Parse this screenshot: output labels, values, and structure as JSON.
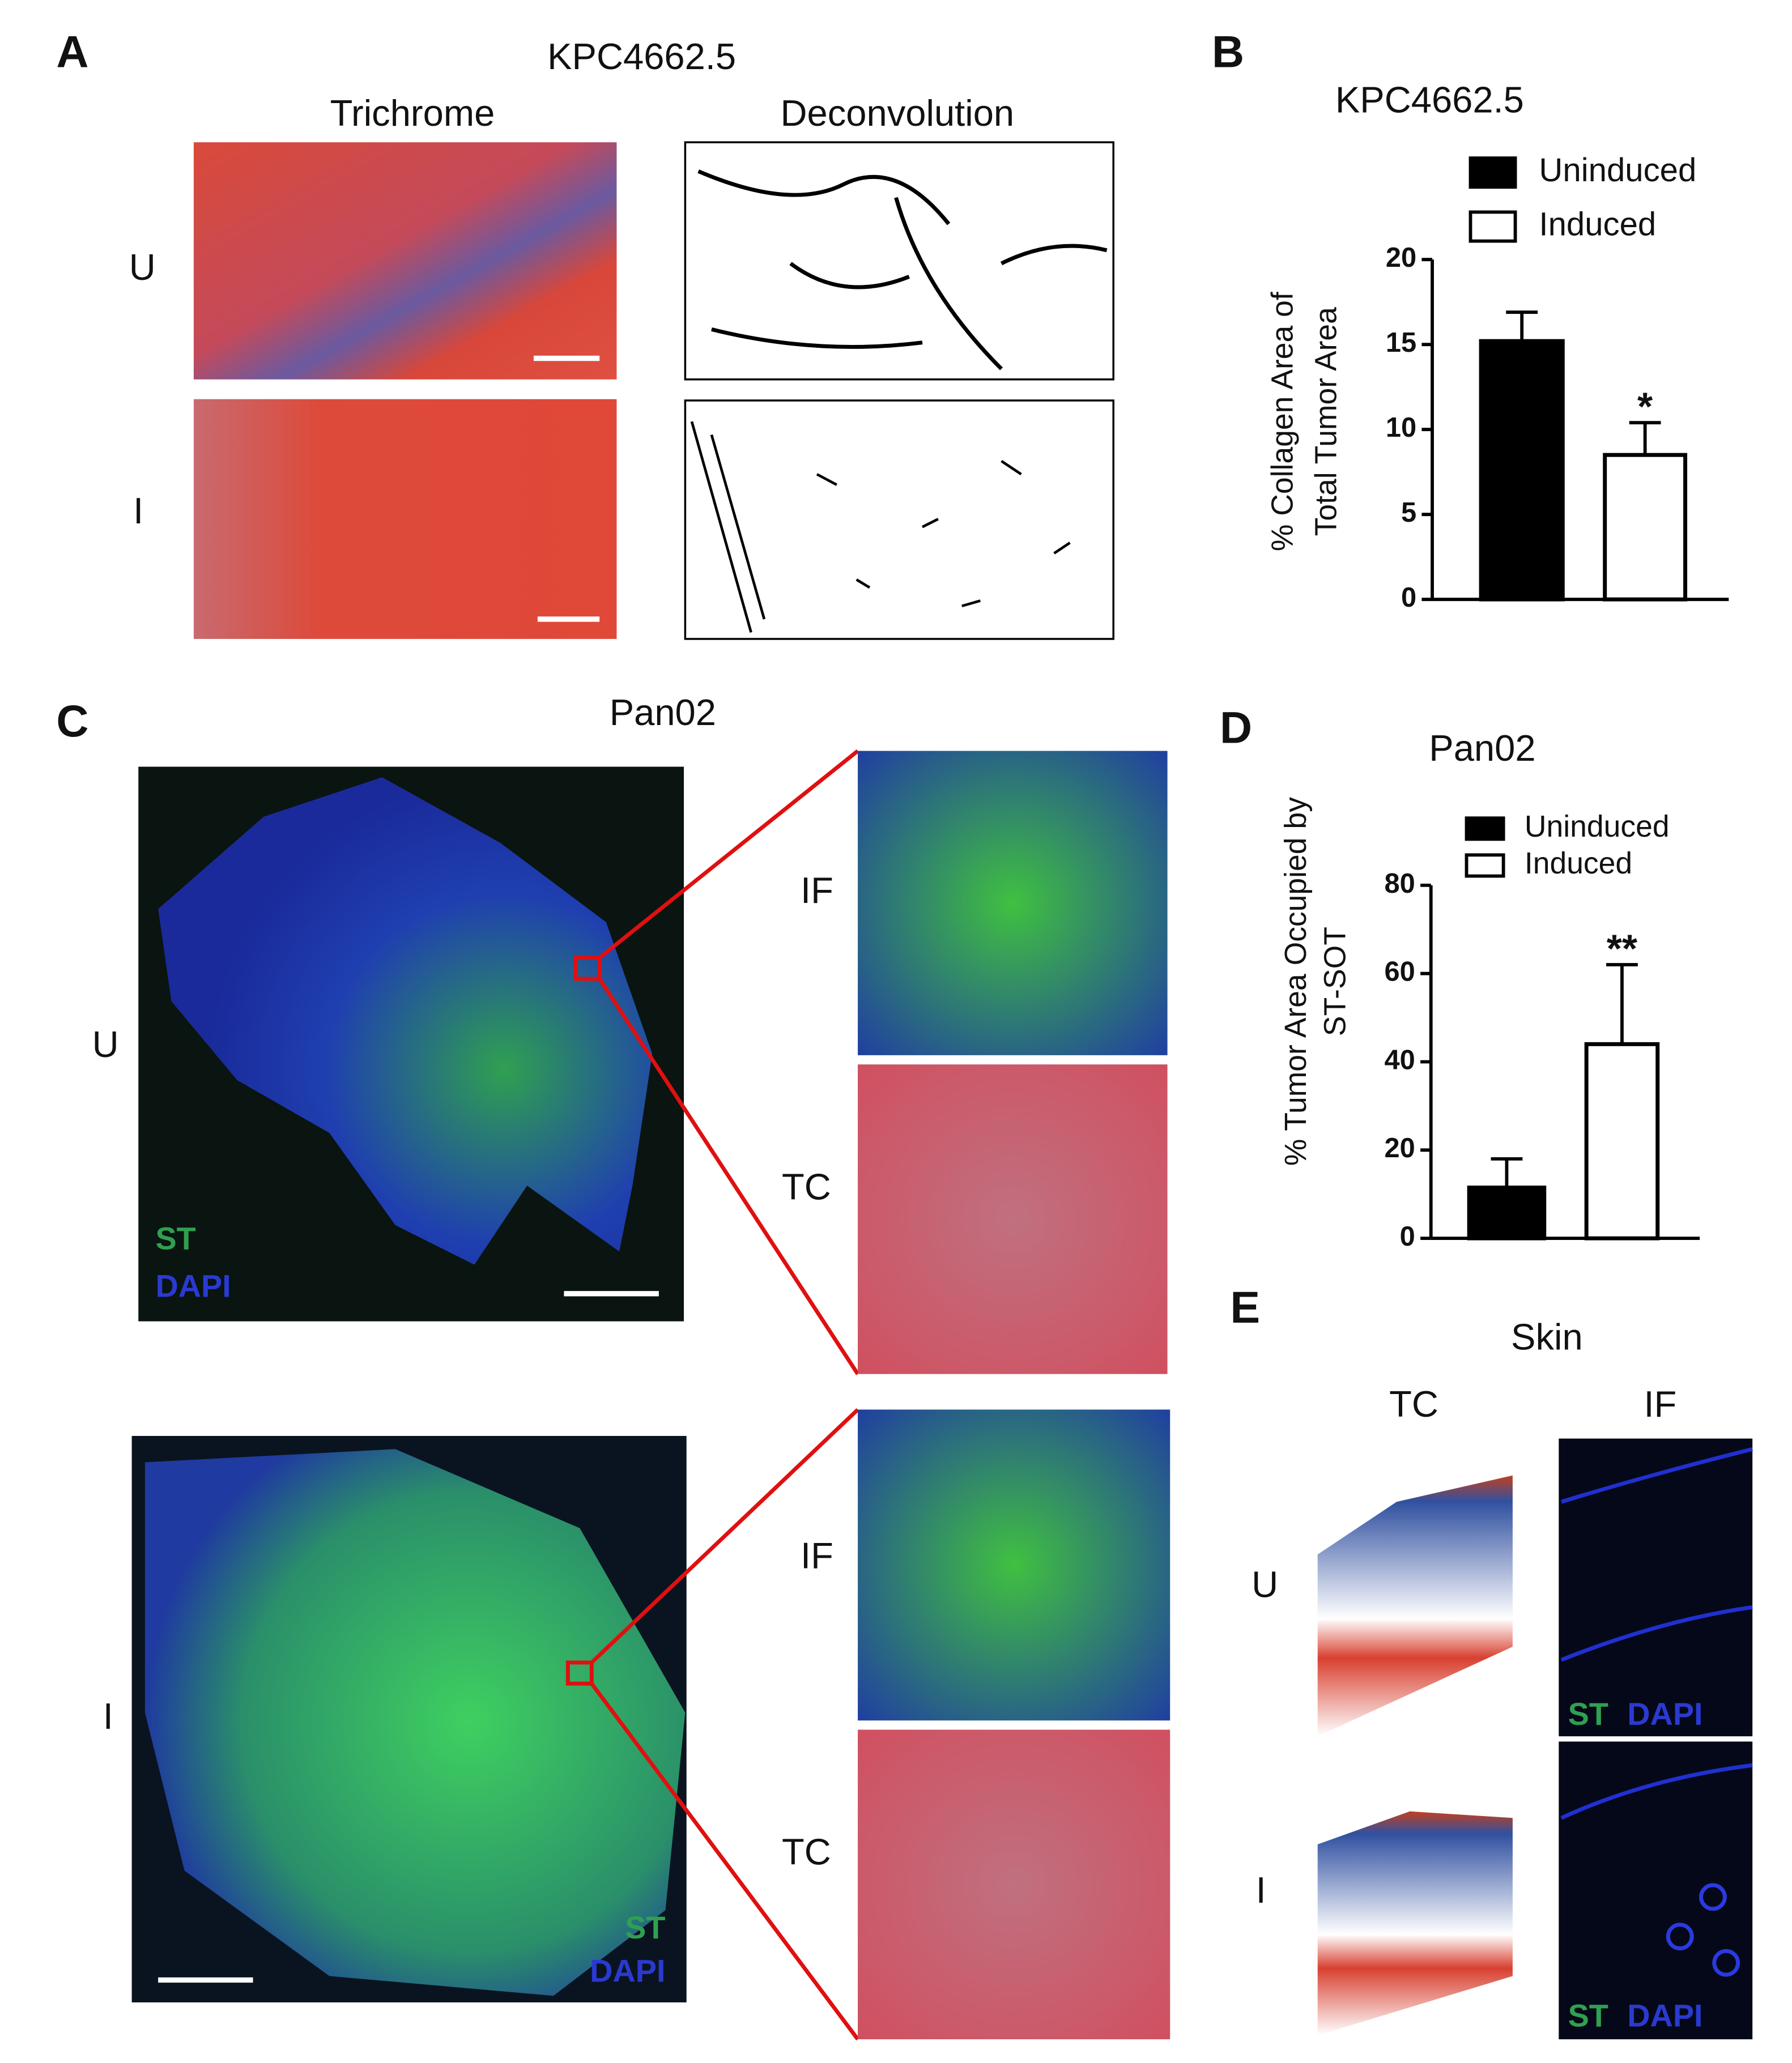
{
  "figure": {
    "panel_a": {
      "letter": "A",
      "title": "KPC4662.5",
      "columns": [
        "Trichrome",
        "Deconvolution"
      ],
      "rows": [
        "U",
        "I"
      ]
    },
    "panel_c": {
      "letter": "C",
      "title": "Pan02",
      "rows": [
        "U",
        "I"
      ],
      "zoom_labels": [
        "IF",
        "TC"
      ],
      "stains": [
        "ST",
        "DAPI"
      ]
    },
    "panel_e": {
      "letter": "E",
      "title": "Skin",
      "columns": [
        "TC",
        "IF"
      ],
      "rows": [
        "U",
        "I"
      ]
    }
  },
  "chart_data": [
    {
      "type": "bar",
      "letter": "B",
      "title": "KPC4662.5",
      "y_label": [
        "% Collagen Area of",
        "Total Tumor Area"
      ],
      "series": [
        {
          "name": "Uninduced",
          "color": "#000000",
          "values": [
            15.2
          ],
          "errors": [
            1.7
          ]
        },
        {
          "name": "Induced",
          "color": "#ffffff",
          "values": [
            8.5
          ],
          "errors": [
            1.9
          ]
        }
      ],
      "significance": "*",
      "ylim": [
        0,
        20
      ],
      "yticks": [
        0,
        5,
        10,
        15,
        20
      ]
    },
    {
      "type": "bar",
      "letter": "D",
      "title": "Pan02",
      "y_label": [
        "% Tumor Area Occupied by",
        "ST-SOT"
      ],
      "series": [
        {
          "name": "Uninduced",
          "color": "#000000",
          "values": [
            11.5
          ],
          "errors": [
            6.5
          ]
        },
        {
          "name": "Induced",
          "color": "#ffffff",
          "values": [
            44
          ],
          "errors": [
            18
          ]
        }
      ],
      "significance": "**",
      "ylim": [
        0,
        80
      ],
      "yticks": [
        0,
        20,
        40,
        60,
        80
      ]
    }
  ]
}
